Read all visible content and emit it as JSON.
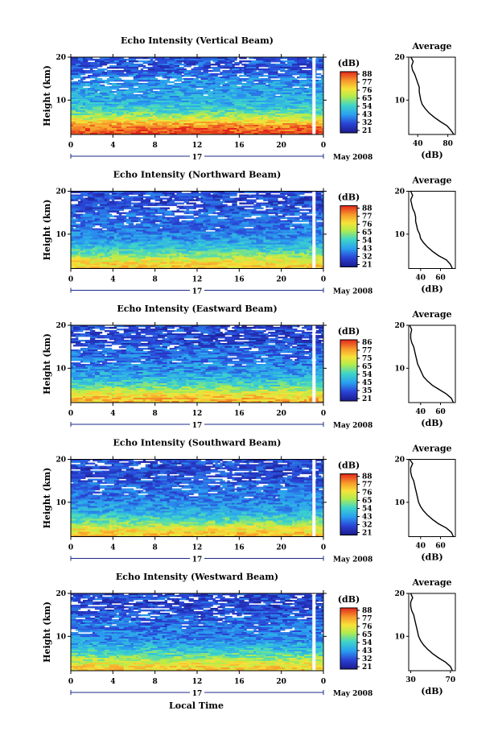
{
  "x_axis_label": "Local Time",
  "date_label": "May 2008",
  "day_label": "17",
  "colorbar_unit": "(dB)",
  "colorbar_ticks": [
    "88",
    "77",
    "76",
    "65",
    "54",
    "43",
    "32",
    "21"
  ],
  "profile_title": "Average",
  "profile_xlabel": "(dB)",
  "chart_data": [
    {
      "type": "heatmap",
      "title": "Echo Intensity (Vertical Beam)",
      "ylabel": "Height (km)",
      "xlabel": "Local Time",
      "xticks": [
        "0",
        "4",
        "8",
        "12",
        "16",
        "20",
        "0"
      ],
      "yticks": [
        "20",
        "10"
      ],
      "xlim": [
        0,
        24
      ],
      "ylim": [
        2,
        20
      ],
      "colorbar": {
        "label": "(dB)",
        "ticks": [
          88,
          77,
          76,
          65,
          54,
          43,
          32,
          21
        ]
      },
      "profile": {
        "title": "Average",
        "xlabel": "(dB)",
        "xticks": [
          "40",
          "80"
        ],
        "xlim": [
          28,
          90
        ],
        "height": [
          2,
          3,
          4,
          5,
          6,
          7,
          8,
          9,
          10,
          11,
          12,
          13,
          14,
          15,
          16,
          17,
          18,
          19,
          20
        ],
        "value": [
          88,
          84,
          79,
          70,
          62,
          55,
          50,
          46,
          44,
          43,
          42,
          42,
          40,
          38,
          36,
          33,
          32,
          34,
          31
        ]
      }
    },
    {
      "type": "heatmap",
      "title": "Echo Intensity (Northward Beam)",
      "ylabel": "Height (km)",
      "xlabel": "Local Time",
      "xticks": [
        "0",
        "4",
        "8",
        "12",
        "16",
        "20",
        "0"
      ],
      "yticks": [
        "20",
        "10"
      ],
      "xlim": [
        0,
        24
      ],
      "ylim": [
        2,
        20
      ],
      "colorbar": {
        "label": "(dB)",
        "ticks": [
          88,
          77,
          76,
          65,
          54,
          43,
          32,
          21
        ]
      },
      "profile": {
        "title": "Average",
        "xlabel": "(dB)",
        "xticks": [
          "40",
          "60"
        ],
        "xlim": [
          28,
          75
        ],
        "height": [
          2,
          3,
          4,
          5,
          6,
          7,
          8,
          9,
          10,
          11,
          12,
          13,
          14,
          15,
          16,
          17,
          18,
          19,
          20
        ],
        "value": [
          72,
          70,
          66,
          58,
          52,
          47,
          43,
          40,
          39,
          37,
          36,
          35,
          35,
          34,
          32,
          31,
          30,
          32,
          30
        ]
      }
    },
    {
      "type": "heatmap",
      "title": "Echo Intensity (Eastward Beam)",
      "ylabel": "Height (km)",
      "xlabel": "Local Time",
      "xticks": [
        "0",
        "4",
        "8",
        "12",
        "16",
        "20",
        "0"
      ],
      "yticks": [
        "20",
        "10"
      ],
      "xlim": [
        0,
        24
      ],
      "ylim": [
        2,
        20
      ],
      "colorbar": {
        "label": "(dB)",
        "ticks": [
          86,
          77,
          75,
          65,
          54,
          45,
          35,
          21
        ]
      },
      "profile": {
        "title": "Average",
        "xlabel": "(dB)",
        "xticks": [
          "40",
          "60"
        ],
        "xlim": [
          28,
          75
        ],
        "height": [
          2,
          3,
          4,
          5,
          6,
          7,
          8,
          9,
          10,
          11,
          12,
          13,
          14,
          15,
          16,
          17,
          18,
          19,
          20
        ],
        "value": [
          73,
          71,
          66,
          59,
          52,
          47,
          43,
          41,
          39,
          37,
          36,
          35,
          34,
          33,
          31,
          30,
          30,
          31,
          29
        ]
      }
    },
    {
      "type": "heatmap",
      "title": "Echo Intensity (Southward Beam)",
      "ylabel": "Height (km)",
      "xlabel": "Local Time",
      "xticks": [
        "0",
        "4",
        "8",
        "12",
        "16",
        "20",
        "0"
      ],
      "yticks": [
        "20",
        "10"
      ],
      "xlim": [
        0,
        24
      ],
      "ylim": [
        2,
        20
      ],
      "colorbar": {
        "label": "(dB)",
        "ticks": [
          88,
          77,
          76,
          65,
          54,
          43,
          32,
          21
        ]
      },
      "profile": {
        "title": "Average",
        "xlabel": "(dB)",
        "xticks": [
          "40",
          "60"
        ],
        "xlim": [
          28,
          75
        ],
        "height": [
          2,
          3,
          4,
          5,
          6,
          7,
          8,
          9,
          10,
          11,
          12,
          13,
          14,
          15,
          16,
          17,
          18,
          19,
          20
        ],
        "value": [
          73,
          71,
          66,
          58,
          52,
          47,
          43,
          40,
          38,
          37,
          36,
          35,
          34,
          33,
          31,
          30,
          30,
          32,
          29
        ]
      }
    },
    {
      "type": "heatmap",
      "title": "Echo Intensity (Westward Beam)",
      "ylabel": "Height (km)",
      "xlabel": "Local Time",
      "xticks": [
        "0",
        "4",
        "8",
        "12",
        "16",
        "20",
        "0"
      ],
      "yticks": [
        "20",
        "10"
      ],
      "xlim": [
        0,
        24
      ],
      "ylim": [
        2,
        20
      ],
      "colorbar": {
        "label": "(dB)",
        "ticks": [
          88,
          77,
          76,
          65,
          54,
          43,
          32,
          21
        ]
      },
      "profile": {
        "title": "Average",
        "xlabel": "(dB)",
        "xticks": [
          "30",
          "70"
        ],
        "xlim": [
          28,
          75
        ],
        "height": [
          2,
          3,
          4,
          5,
          6,
          7,
          8,
          9,
          10,
          11,
          12,
          13,
          14,
          15,
          16,
          17,
          18,
          19,
          20
        ],
        "value": [
          72,
          70,
          65,
          58,
          52,
          47,
          43,
          40,
          38,
          37,
          36,
          35,
          34,
          33,
          31,
          30,
          30,
          32,
          30
        ]
      }
    }
  ]
}
